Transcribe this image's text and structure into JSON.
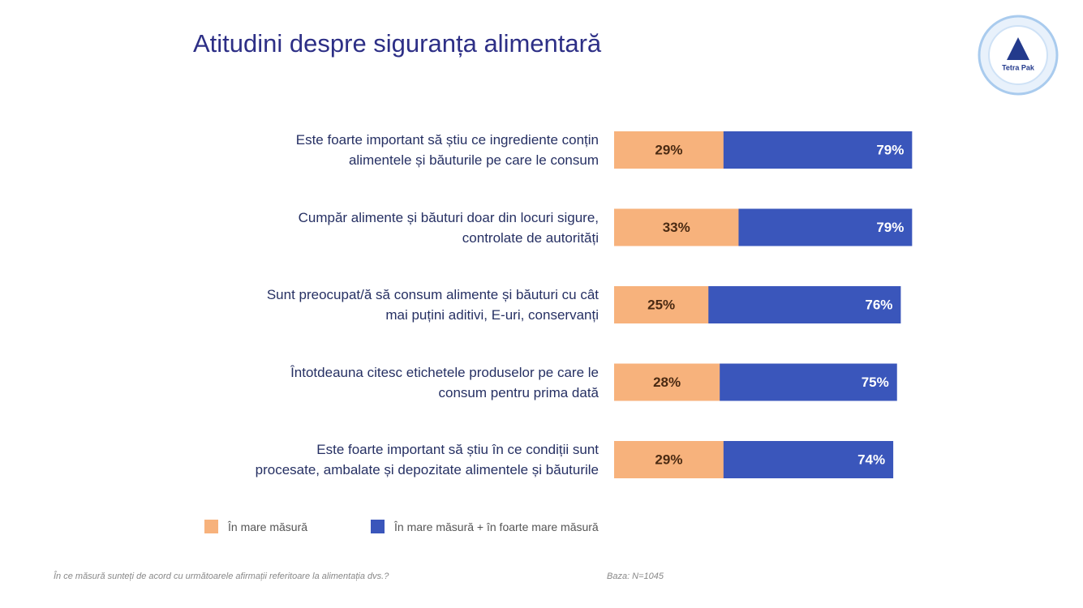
{
  "chart_data": {
    "type": "overlay-bar",
    "title": "Atitudini despre siguranța alimentară",
    "categories": [
      "Este foarte important să știu ce ingrediente conțin\nalimentele și băuturile pe care le consum",
      "Cumpăr alimente și băuturi doar din locuri sigure,\ncontrolate de autorități",
      "Sunt preocupat/ă să consum alimente și băuturi cu cât\nmai puțini aditivi, E-uri, conservanți",
      "Întotdeauna citesc etichetele produselor pe care le\nconsum pentru prima dată",
      "Este foarte important să știu în ce condiții sunt\nprocesate, ambalate și depozitate alimentele și băuturile"
    ],
    "series": [
      {
        "name": "În mare măsură + în foarte mare măsură",
        "color": "#3a56bb",
        "values": [
          79,
          79,
          76,
          75,
          74
        ],
        "value_labels": [
          "79%",
          "79%",
          "76%",
          "75%",
          "74%"
        ]
      },
      {
        "name": "În mare măsură",
        "color": "#f7b27c",
        "values": [
          29,
          33,
          25,
          28,
          29
        ],
        "value_labels": [
          "29%",
          "33%",
          "25%",
          "28%",
          "29%"
        ]
      }
    ],
    "footnote": "În ce măsură sunteți de acord cu următoarele afirmații referitoare la alimentația dvs.?",
    "base_note": "Baza: N=1045",
    "logo": "Tetra Pak"
  }
}
